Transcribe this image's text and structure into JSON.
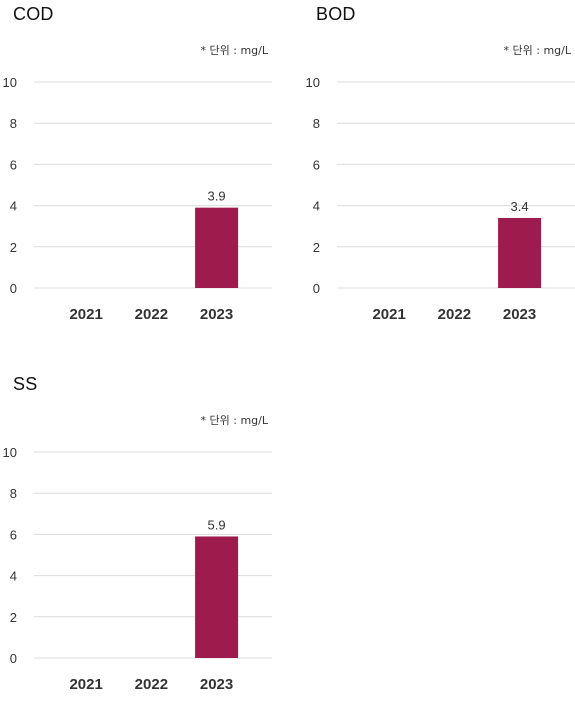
{
  "chart_data": [
    {
      "type": "bar",
      "title": "COD",
      "unit_note": "* 단위 : mg/L",
      "categories": [
        "2021",
        "2022",
        "2023"
      ],
      "values": [
        null,
        null,
        3.9
      ],
      "data_labels": [
        "",
        "",
        "3.9"
      ],
      "ylim": [
        0,
        10
      ],
      "yticks": [
        "0",
        "2",
        "4",
        "6",
        "8",
        "10"
      ],
      "grid": true,
      "bar_color": "#9e1b4e",
      "grid_color": "#dcdcdc"
    },
    {
      "type": "bar",
      "title": "BOD",
      "unit_note": "* 단위 : mg/L",
      "categories": [
        "2021",
        "2022",
        "2023"
      ],
      "values": [
        null,
        null,
        3.4
      ],
      "data_labels": [
        "",
        "",
        "3.4"
      ],
      "ylim": [
        0,
        10
      ],
      "yticks": [
        "0",
        "2",
        "4",
        "6",
        "8",
        "10"
      ],
      "grid": true,
      "bar_color": "#9e1b4e",
      "grid_color": "#dcdcdc"
    },
    {
      "type": "bar",
      "title": "SS",
      "unit_note": "* 단위 : mg/L",
      "categories": [
        "2021",
        "2022",
        "2023"
      ],
      "values": [
        null,
        null,
        5.9
      ],
      "data_labels": [
        "",
        "",
        "5.9"
      ],
      "ylim": [
        0,
        10
      ],
      "yticks": [
        "0",
        "2",
        "4",
        "6",
        "8",
        "10"
      ],
      "grid": true,
      "bar_color": "#9e1b4e",
      "grid_color": "#dcdcdc"
    }
  ]
}
